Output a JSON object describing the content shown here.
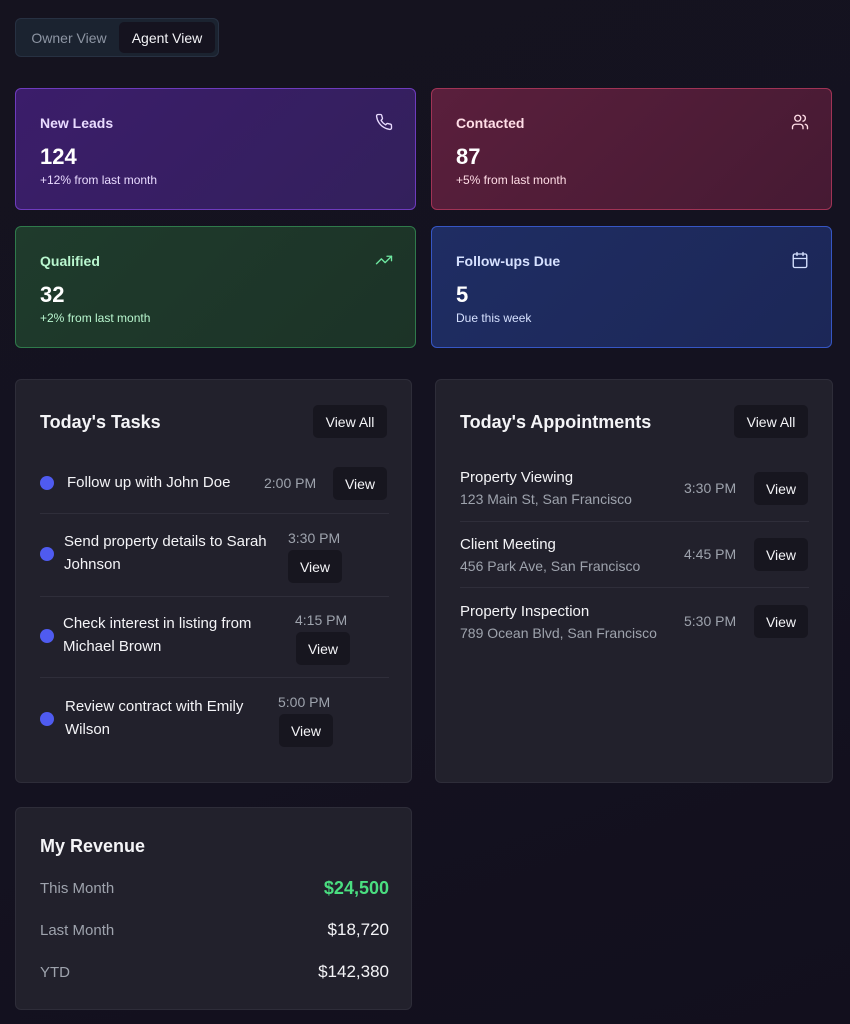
{
  "view_toggle": {
    "owner_label": "Owner View",
    "agent_label": "Agent View",
    "active": "Agent View"
  },
  "stats": [
    {
      "label": "New Leads",
      "value": "124",
      "sub": "+12% from last month",
      "icon": "phone-icon",
      "color": "#6e3bbd"
    },
    {
      "label": "Contacted",
      "value": "87",
      "sub": "+5% from last month",
      "icon": "users-icon",
      "color": "#a03355"
    },
    {
      "label": "Qualified",
      "value": "32",
      "sub": "+2% from last month",
      "icon": "trending-up-icon",
      "color": "#2f7a4b"
    },
    {
      "label": "Follow-ups Due",
      "value": "5",
      "sub": "Due this week",
      "icon": "calendar-icon",
      "color": "#3656c4"
    }
  ],
  "tasks": {
    "title": "Today's Tasks",
    "view_all": "View All",
    "items": [
      {
        "text": "Follow up with John Doe",
        "time": "2:00 PM",
        "button": "View"
      },
      {
        "text": "Send property details to Sarah Johnson",
        "time": "3:30 PM",
        "button": "View"
      },
      {
        "text": "Check interest in listing from Michael Brown",
        "time": "4:15 PM",
        "button": "View"
      },
      {
        "text": "Review contract with Emily Wilson",
        "time": "5:00 PM",
        "button": "View"
      }
    ]
  },
  "appointments": {
    "title": "Today's Appointments",
    "view_all": "View All",
    "items": [
      {
        "title": "Property Viewing",
        "address": "123 Main St, San Francisco",
        "time": "3:30 PM",
        "button": "View"
      },
      {
        "title": "Client Meeting",
        "address": "456 Park Ave, San Francisco",
        "time": "4:45 PM",
        "button": "View"
      },
      {
        "title": "Property Inspection",
        "address": "789 Ocean Blvd, San Francisco",
        "time": "5:30 PM",
        "button": "View"
      }
    ]
  },
  "revenue": {
    "title": "My Revenue",
    "rows": [
      {
        "label": "This Month",
        "value": "$24,500",
        "color": "#4ade80"
      },
      {
        "label": "Last Month",
        "value": "$18,720"
      },
      {
        "label": "YTD",
        "value": "$142,380"
      }
    ]
  }
}
